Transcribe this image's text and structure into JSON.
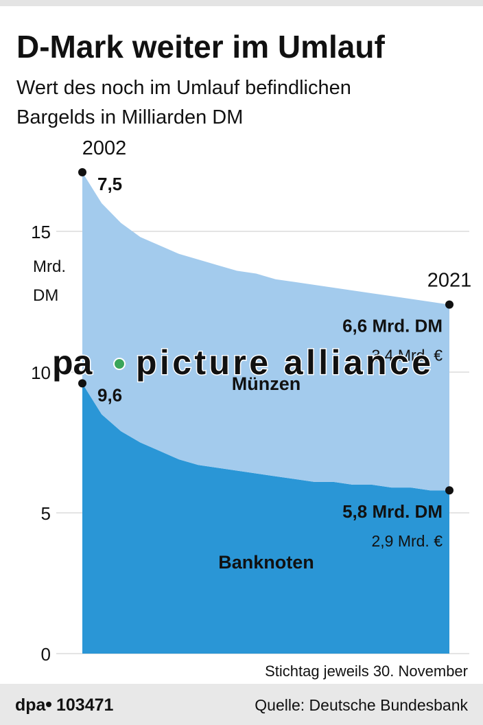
{
  "chart_data": {
    "type": "stacked-area",
    "title": "D-Mark weiter im Umlauf",
    "subtitle_lines": [
      "Wert des noch im Umlauf befindlichen",
      "Bargelds in Milliarden DM"
    ],
    "ylabel_lines": [
      "Mrd.",
      "DM"
    ],
    "categories": [
      "2002",
      null,
      null,
      null,
      null,
      null,
      null,
      null,
      null,
      null,
      null,
      null,
      null,
      null,
      null,
      null,
      null,
      null,
      null,
      "2021"
    ],
    "series": [
      {
        "name": "Banknoten",
        "color": "#2a96d6",
        "values": [
          9.6,
          8.5,
          7.9,
          7.5,
          7.2,
          6.9,
          6.7,
          6.6,
          6.5,
          6.4,
          6.3,
          6.2,
          6.1,
          6.1,
          6.0,
          6.0,
          5.9,
          5.9,
          5.8,
          5.8
        ],
        "value_labels": [
          "9,6",
          null,
          null,
          null,
          null,
          null,
          null,
          null,
          null,
          null,
          null,
          null,
          null,
          null,
          null,
          null,
          null,
          null,
          null,
          "5,8 Mrd. DM"
        ],
        "euro_label": "2,9 Mrd. €"
      },
      {
        "name": "Münzen",
        "color": "#a3cbed",
        "values": [
          7.5,
          7.5,
          7.4,
          7.3,
          7.3,
          7.3,
          7.3,
          7.2,
          7.1,
          7.1,
          7.0,
          7.0,
          7.0,
          6.9,
          6.9,
          6.8,
          6.8,
          6.7,
          6.7,
          6.6
        ],
        "value_labels": [
          "7,5",
          null,
          null,
          null,
          null,
          null,
          null,
          null,
          null,
          null,
          null,
          null,
          null,
          null,
          null,
          null,
          null,
          null,
          null,
          "6,6 Mrd. DM"
        ],
        "euro_label": "3,4 Mrd. €"
      }
    ],
    "ylim": [
      0,
      18
    ],
    "yticks": [
      0,
      5,
      10,
      15
    ],
    "grid": true,
    "note": "Stichtag jeweils 30. November",
    "source": "Quelle: Deutsche Bundesbank",
    "agency": "dpa",
    "graphic_id": "103471",
    "watermark": {
      "left": "pa",
      "right": "picture alliance"
    }
  }
}
